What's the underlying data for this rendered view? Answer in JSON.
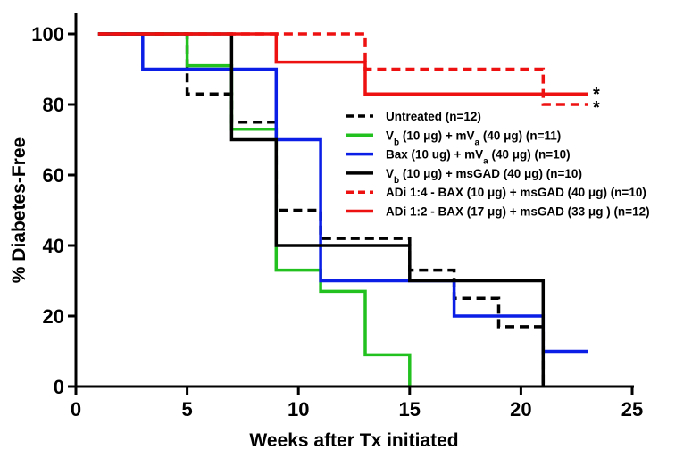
{
  "chart_data": {
    "type": "line",
    "step": true,
    "xlabel": "Weeks after Tx initiated",
    "ylabel": "% Diabetes-Free",
    "xlim": [
      0,
      25
    ],
    "ylim": [
      0,
      100
    ],
    "xticks": [
      "0",
      "5",
      "10",
      "15",
      "20",
      "25"
    ],
    "yticks": [
      "0",
      "20",
      "40",
      "60",
      "80",
      "100"
    ],
    "grid": false,
    "legend_position": "right",
    "series": [
      {
        "name": "Untreated (n=12)",
        "legend": [
          {
            "t": "Untreated (n=12)"
          }
        ],
        "color": "#000000",
        "dashed": true,
        "x": [
          1,
          5,
          5,
          7,
          7,
          9,
          9,
          11,
          11,
          13,
          13,
          15,
          15,
          17,
          17,
          19,
          19,
          21,
          21
        ],
        "y": [
          100,
          100,
          83,
          83,
          75,
          75,
          50,
          50,
          42,
          42,
          42,
          42,
          33,
          33,
          25,
          25,
          17,
          17,
          0
        ]
      },
      {
        "name": "Vb (10 μg) + mVa (40 μg) (n=11)",
        "legend": [
          {
            "t": "V"
          },
          {
            "t": "b",
            "sub": true
          },
          {
            "t": " (10 μg) + mV"
          },
          {
            "t": "a",
            "sub": true
          },
          {
            "t": " (40 μg) (n=11)"
          }
        ],
        "color": "#22c11f",
        "dashed": false,
        "x": [
          1,
          5,
          5,
          7,
          7,
          9,
          9,
          11,
          11,
          13,
          13,
          15,
          15
        ],
        "y": [
          100,
          100,
          91,
          91,
          73,
          73,
          33,
          33,
          27,
          27,
          9,
          9,
          0
        ]
      },
      {
        "name": "Bax (10 ug) + mVa (40 μg) (n=10)",
        "legend": [
          {
            "t": "Bax (10 ug) + mV"
          },
          {
            "t": "a",
            "sub": true
          },
          {
            "t": " (40 μg) (n=10)"
          }
        ],
        "color": "#0a1ee6",
        "dashed": false,
        "x": [
          1,
          3,
          3,
          9,
          9,
          11,
          11,
          17,
          17,
          21,
          21,
          23
        ],
        "y": [
          100,
          100,
          90,
          90,
          70,
          70,
          30,
          30,
          20,
          20,
          10,
          10
        ]
      },
      {
        "name": "Vb (10 μg) + msGAD (40 μg) (n=10)",
        "legend": [
          {
            "t": "V"
          },
          {
            "t": "b",
            "sub": true
          },
          {
            "t": " (10 μg) + msGAD (40 μg)  (n=10)"
          }
        ],
        "color": "#000000",
        "dashed": false,
        "x": [
          1,
          7,
          7,
          9,
          9,
          15,
          15,
          21,
          21
        ],
        "y": [
          100,
          100,
          70,
          70,
          40,
          40,
          30,
          30,
          0
        ]
      },
      {
        "name": "ADi 1:4 - BAX (10 μg) + msGAD (40 μg) (n=10)",
        "legend": [
          {
            "t": "ADi 1:4 - BAX (10 μg) + msGAD (40 μg) (n=10)"
          }
        ],
        "color": "#ee1111",
        "dashed": true,
        "x": [
          1,
          13,
          13,
          21,
          21,
          23
        ],
        "y": [
          100,
          100,
          90,
          90,
          80,
          80
        ]
      },
      {
        "name": "ADi 1:2 - BAX (17 μg) + msGAD (33 μg ) (n=12)",
        "legend": [
          {
            "t": "ADi 1:2 - BAX (17 μg) + msGAD (33 μg ) (n=12)"
          }
        ],
        "color": "#ee1111",
        "dashed": false,
        "x": [
          1,
          9,
          9,
          13,
          13,
          23
        ],
        "y": [
          100,
          100,
          92,
          92,
          83,
          83
        ]
      }
    ],
    "annotations": [
      "*",
      "*"
    ]
  }
}
